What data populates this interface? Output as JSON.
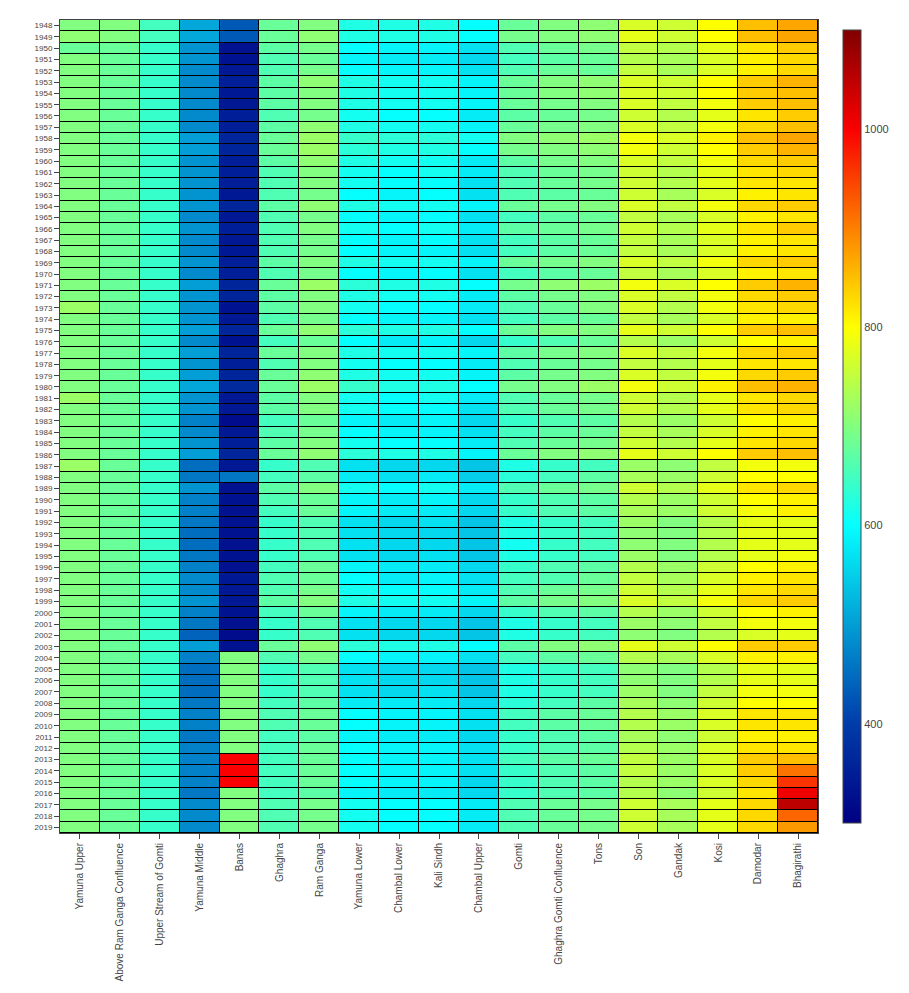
{
  "chart_data": {
    "type": "heatmap",
    "categories": [
      "Yamuna Upper",
      "Above Ram Ganga Confluence",
      "Upper Stream of Gomti",
      "Yamuna Middle",
      "Banas",
      "Ghaghra",
      "Ram Ganga",
      "Yamuna Lower",
      "Chambal Lower",
      "Kali Sindh",
      "Chambal Upper",
      "Gomti",
      "Ghaghra Gomti Confluence",
      "Tons",
      "Son",
      "Gandak",
      "Kosi",
      "Damodar",
      "Bhagirathi"
    ],
    "y": [
      1948,
      1949,
      1950,
      1951,
      1952,
      1953,
      1954,
      1955,
      1956,
      1957,
      1958,
      1959,
      1960,
      1961,
      1962,
      1963,
      1964,
      1965,
      1966,
      1967,
      1968,
      1969,
      1970,
      1971,
      1972,
      1973,
      1974,
      1975,
      1976,
      1977,
      1978,
      1979,
      1980,
      1981,
      1982,
      1983,
      1984,
      1985,
      1986,
      1987,
      1988,
      1989,
      1990,
      1991,
      1992,
      1993,
      1994,
      1995,
      1996,
      1997,
      1998,
      1999,
      2000,
      2001,
      2002,
      2003,
      2004,
      2005,
      2006,
      2007,
      2008,
      2009,
      2010,
      2011,
      2012,
      2013,
      2014,
      2015,
      2016,
      2017,
      2018,
      2019
    ],
    "color": "jet",
    "color_range": [
      300,
      1100
    ],
    "color_ticks": [
      400,
      600,
      800,
      1000
    ],
    "grid": true,
    "values": [
      [
        700,
        710,
        680,
        700,
        700,
        700,
        700,
        700,
        700,
        700,
        700,
        700,
        700,
        700,
        700,
        700,
        700,
        700,
        700,
        700,
        700,
        700,
        700,
        700,
        700,
        720,
        700,
        700,
        700,
        700,
        700,
        700,
        700,
        720,
        700,
        700,
        700,
        700,
        700,
        720,
        700,
        700,
        700,
        700,
        700,
        700,
        700,
        700,
        700,
        700,
        700,
        700,
        700,
        700,
        700,
        700,
        700,
        700,
        700,
        700,
        700,
        700,
        700,
        700,
        700,
        700,
        700,
        700,
        700,
        700,
        700,
        700
      ],
      [
        700,
        700,
        680,
        680,
        680,
        680,
        680,
        680,
        680,
        680,
        680,
        680,
        680,
        680,
        680,
        680,
        680,
        680,
        680,
        680,
        680,
        680,
        680,
        680,
        680,
        680,
        680,
        680,
        680,
        680,
        680,
        680,
        680,
        680,
        680,
        680,
        680,
        680,
        680,
        680,
        680,
        680,
        680,
        680,
        680,
        680,
        680,
        680,
        680,
        680,
        680,
        680,
        680,
        680,
        680,
        680,
        680,
        680,
        680,
        680,
        680,
        680,
        680,
        680,
        680,
        680,
        680,
        680,
        680,
        680,
        680,
        680
      ],
      [
        650,
        650,
        640,
        640,
        640,
        640,
        640,
        640,
        640,
        640,
        640,
        640,
        640,
        640,
        640,
        640,
        640,
        640,
        640,
        640,
        640,
        640,
        640,
        640,
        640,
        640,
        640,
        640,
        640,
        640,
        640,
        640,
        640,
        640,
        640,
        640,
        640,
        640,
        640,
        640,
        640,
        640,
        640,
        640,
        640,
        640,
        640,
        640,
        640,
        640,
        640,
        640,
        640,
        640,
        640,
        640,
        640,
        640,
        640,
        640,
        640,
        640,
        640,
        640,
        640,
        640,
        640,
        640,
        640,
        640,
        640,
        640
      ],
      [
        510,
        510,
        490,
        490,
        480,
        480,
        480,
        480,
        480,
        480,
        500,
        500,
        490,
        490,
        490,
        490,
        490,
        480,
        490,
        480,
        480,
        490,
        480,
        500,
        490,
        490,
        490,
        500,
        480,
        500,
        490,
        500,
        510,
        490,
        490,
        470,
        480,
        490,
        500,
        450,
        460,
        490,
        470,
        470,
        460,
        450,
        450,
        460,
        470,
        480,
        480,
        490,
        470,
        460,
        440,
        500,
        470,
        450,
        450,
        450,
        460,
        470,
        470,
        460,
        470,
        470,
        470,
        470,
        460,
        480,
        480,
        480
      ],
      [
        430,
        430,
        330,
        330,
        340,
        350,
        340,
        340,
        350,
        350,
        360,
        360,
        350,
        350,
        350,
        340,
        360,
        340,
        350,
        340,
        340,
        350,
        350,
        360,
        360,
        330,
        340,
        360,
        330,
        360,
        350,
        360,
        370,
        340,
        340,
        320,
        340,
        350,
        360,
        340,
        460,
        330,
        330,
        330,
        330,
        330,
        330,
        330,
        330,
        340,
        340,
        340,
        330,
        330,
        320,
        330,
        700,
        700,
        700,
        700,
        700,
        700,
        700,
        700,
        700,
        1000,
        1000,
        1000,
        700,
        700,
        700,
        700
      ],
      [
        680,
        680,
        670,
        660,
        660,
        670,
        670,
        670,
        660,
        670,
        680,
        680,
        670,
        660,
        660,
        660,
        670,
        660,
        660,
        660,
        660,
        670,
        660,
        680,
        670,
        670,
        660,
        680,
        650,
        680,
        660,
        680,
        680,
        670,
        670,
        650,
        660,
        670,
        680,
        640,
        650,
        670,
        660,
        650,
        640,
        640,
        640,
        640,
        650,
        660,
        660,
        670,
        650,
        640,
        640,
        680,
        660,
        640,
        640,
        640,
        650,
        660,
        660,
        650,
        650,
        650,
        650,
        650,
        650,
        660,
        660,
        660
      ],
      [
        700,
        710,
        690,
        680,
        690,
        710,
        700,
        700,
        690,
        710,
        720,
        720,
        710,
        700,
        700,
        690,
        710,
        690,
        700,
        690,
        690,
        700,
        690,
        720,
        700,
        700,
        690,
        710,
        680,
        700,
        700,
        710,
        720,
        700,
        700,
        680,
        690,
        700,
        710,
        660,
        670,
        700,
        680,
        680,
        660,
        660,
        660,
        660,
        680,
        680,
        690,
        700,
        680,
        660,
        660,
        710,
        690,
        660,
        660,
        660,
        670,
        680,
        680,
        670,
        680,
        680,
        680,
        680,
        670,
        690,
        690,
        690
      ],
      [
        620,
        620,
        600,
        590,
        600,
        620,
        620,
        620,
        610,
        620,
        640,
        630,
        620,
        610,
        610,
        600,
        620,
        600,
        610,
        600,
        600,
        620,
        600,
        630,
        620,
        610,
        600,
        630,
        600,
        620,
        610,
        620,
        640,
        610,
        610,
        590,
        600,
        610,
        630,
        570,
        580,
        610,
        590,
        590,
        570,
        570,
        570,
        570,
        590,
        600,
        610,
        620,
        590,
        570,
        570,
        630,
        600,
        570,
        570,
        570,
        580,
        600,
        600,
        590,
        600,
        600,
        600,
        600,
        590,
        610,
        610,
        610
      ],
      [
        620,
        620,
        590,
        580,
        590,
        610,
        610,
        610,
        600,
        610,
        630,
        620,
        610,
        600,
        600,
        590,
        610,
        590,
        600,
        590,
        590,
        610,
        590,
        620,
        610,
        600,
        590,
        620,
        580,
        610,
        600,
        610,
        620,
        600,
        600,
        580,
        590,
        600,
        620,
        560,
        570,
        600,
        580,
        580,
        560,
        560,
        560,
        560,
        580,
        580,
        600,
        610,
        580,
        560,
        560,
        620,
        590,
        560,
        560,
        560,
        580,
        590,
        590,
        580,
        590,
        590,
        590,
        590,
        580,
        600,
        600,
        600
      ],
      [
        620,
        620,
        590,
        580,
        590,
        610,
        610,
        610,
        600,
        610,
        630,
        620,
        610,
        610,
        600,
        600,
        610,
        600,
        610,
        600,
        590,
        610,
        600,
        620,
        610,
        600,
        590,
        620,
        590,
        610,
        600,
        610,
        620,
        610,
        600,
        590,
        590,
        600,
        620,
        560,
        580,
        610,
        590,
        580,
        570,
        560,
        560,
        570,
        580,
        590,
        600,
        610,
        580,
        560,
        560,
        620,
        590,
        560,
        560,
        570,
        580,
        590,
        590,
        580,
        590,
        590,
        590,
        590,
        580,
        600,
        600,
        600
      ],
      [
        600,
        600,
        570,
        560,
        570,
        590,
        590,
        590,
        580,
        590,
        610,
        600,
        580,
        580,
        570,
        570,
        590,
        570,
        580,
        570,
        570,
        590,
        570,
        600,
        580,
        580,
        570,
        600,
        560,
        590,
        580,
        590,
        600,
        580,
        570,
        560,
        570,
        580,
        590,
        540,
        550,
        580,
        560,
        560,
        540,
        540,
        540,
        540,
        560,
        570,
        580,
        590,
        560,
        540,
        540,
        600,
        570,
        540,
        540,
        540,
        560,
        570,
        570,
        560,
        570,
        570,
        570,
        560,
        560,
        580,
        580,
        580
      ],
      [
        680,
        690,
        660,
        650,
        660,
        680,
        680,
        680,
        670,
        680,
        700,
        690,
        670,
        660,
        660,
        660,
        680,
        650,
        670,
        650,
        650,
        680,
        650,
        690,
        670,
        660,
        650,
        680,
        640,
        670,
        660,
        670,
        690,
        660,
        660,
        640,
        650,
        660,
        680,
        620,
        630,
        660,
        640,
        640,
        620,
        620,
        610,
        620,
        640,
        650,
        660,
        670,
        640,
        620,
        620,
        670,
        650,
        620,
        620,
        620,
        630,
        650,
        650,
        640,
        640,
        650,
        640,
        640,
        640,
        660,
        660,
        660
      ],
      [
        700,
        700,
        680,
        670,
        680,
        700,
        700,
        690,
        680,
        690,
        710,
        700,
        690,
        680,
        680,
        670,
        690,
        670,
        680,
        670,
        670,
        690,
        670,
        710,
        690,
        680,
        670,
        700,
        660,
        690,
        680,
        690,
        700,
        680,
        680,
        660,
        670,
        680,
        700,
        640,
        650,
        680,
        660,
        660,
        640,
        640,
        640,
        640,
        660,
        660,
        680,
        690,
        660,
        640,
        640,
        700,
        670,
        640,
        640,
        640,
        650,
        670,
        670,
        660,
        660,
        670,
        660,
        660,
        660,
        680,
        680,
        680
      ],
      [
        710,
        710,
        690,
        680,
        680,
        710,
        710,
        700,
        690,
        700,
        720,
        710,
        700,
        690,
        690,
        680,
        700,
        680,
        690,
        680,
        680,
        700,
        680,
        720,
        700,
        700,
        680,
        700,
        680,
        700,
        690,
        700,
        720,
        690,
        690,
        670,
        680,
        690,
        710,
        650,
        670,
        690,
        670,
        670,
        650,
        650,
        650,
        650,
        670,
        680,
        690,
        700,
        670,
        650,
        650,
        710,
        680,
        650,
        650,
        650,
        670,
        680,
        680,
        670,
        670,
        680,
        670,
        670,
        670,
        690,
        690,
        690
      ],
      [
        770,
        780,
        750,
        740,
        750,
        770,
        770,
        770,
        760,
        770,
        790,
        790,
        770,
        760,
        760,
        760,
        770,
        750,
        760,
        750,
        750,
        770,
        750,
        790,
        770,
        770,
        750,
        780,
        740,
        770,
        750,
        770,
        790,
        760,
        760,
        740,
        750,
        760,
        780,
        720,
        730,
        760,
        740,
        730,
        720,
        710,
        710,
        720,
        740,
        750,
        760,
        770,
        740,
        720,
        710,
        780,
        740,
        710,
        710,
        720,
        730,
        740,
        740,
        730,
        740,
        750,
        750,
        740,
        740,
        760,
        760,
        760
      ],
      [
        760,
        760,
        740,
        730,
        730,
        760,
        760,
        750,
        740,
        750,
        770,
        760,
        750,
        740,
        740,
        730,
        750,
        730,
        740,
        730,
        730,
        750,
        730,
        770,
        750,
        740,
        730,
        760,
        720,
        750,
        740,
        750,
        760,
        740,
        740,
        720,
        730,
        740,
        760,
        710,
        720,
        740,
        720,
        720,
        700,
        700,
        700,
        700,
        720,
        730,
        740,
        750,
        720,
        710,
        700,
        760,
        730,
        700,
        700,
        700,
        710,
        720,
        720,
        710,
        720,
        720,
        720,
        720,
        710,
        730,
        730,
        730
      ],
      [
        800,
        800,
        780,
        770,
        770,
        800,
        800,
        790,
        780,
        790,
        810,
        800,
        790,
        780,
        780,
        770,
        790,
        770,
        780,
        770,
        770,
        790,
        770,
        800,
        790,
        790,
        770,
        800,
        760,
        790,
        780,
        790,
        810,
        780,
        780,
        760,
        770,
        780,
        800,
        750,
        760,
        780,
        760,
        760,
        740,
        740,
        740,
        740,
        760,
        770,
        780,
        790,
        760,
        750,
        740,
        800,
        770,
        740,
        740,
        750,
        760,
        770,
        770,
        760,
        770,
        770,
        770,
        770,
        760,
        780,
        780,
        780
      ],
      [
        850,
        850,
        820,
        810,
        810,
        840,
        840,
        840,
        820,
        830,
        850,
        840,
        830,
        820,
        820,
        810,
        830,
        810,
        820,
        810,
        810,
        830,
        810,
        840,
        830,
        820,
        810,
        840,
        800,
        830,
        820,
        830,
        850,
        820,
        820,
        800,
        810,
        820,
        840,
        790,
        800,
        820,
        800,
        790,
        780,
        780,
        780,
        780,
        800,
        810,
        820,
        830,
        800,
        790,
        770,
        840,
        810,
        780,
        780,
        790,
        800,
        820,
        820,
        810,
        820,
        840,
        840,
        830,
        820,
        830,
        830,
        830
      ],
      [
        870,
        870,
        840,
        830,
        830,
        860,
        850,
        850,
        840,
        850,
        870,
        860,
        840,
        830,
        820,
        820,
        840,
        820,
        840,
        820,
        820,
        840,
        820,
        860,
        840,
        830,
        810,
        850,
        810,
        840,
        820,
        840,
        860,
        830,
        830,
        810,
        820,
        830,
        850,
        790,
        800,
        830,
        810,
        810,
        780,
        780,
        780,
        790,
        810,
        820,
        830,
        840,
        810,
        790,
        780,
        840,
        810,
        780,
        780,
        790,
        800,
        820,
        820,
        810,
        820,
        850,
        910,
        960,
        1010,
        1050,
        920,
        880
      ]
    ]
  }
}
